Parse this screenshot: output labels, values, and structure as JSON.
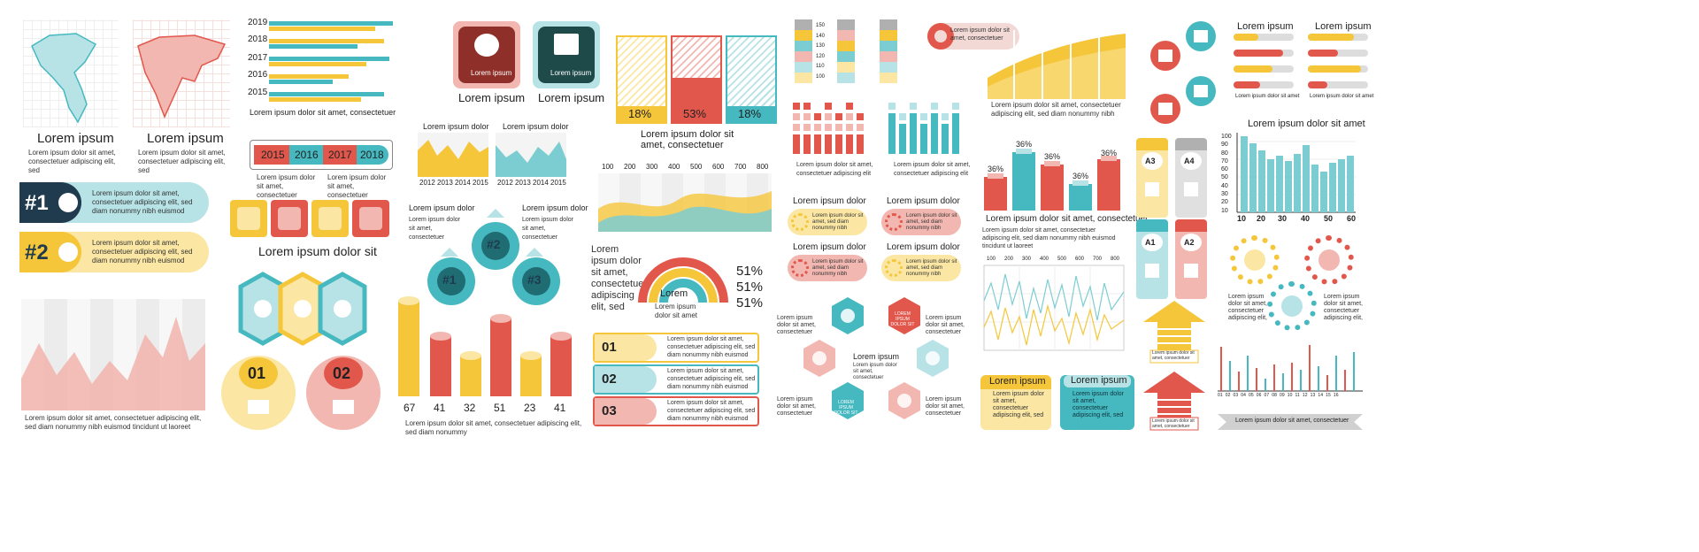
{
  "colors": {
    "teal": "#45b8c0",
    "red": "#e2574c",
    "yellow": "#f5c63a",
    "pink": "#f2b7b0",
    "lightteal": "#b7e3e6",
    "lightyellow": "#fbe7a3",
    "dark": "#1f3b4d"
  },
  "maps": {
    "a_title": "Lorem ipsum",
    "b_title": "Lorem ipsum",
    "a_text": "Lorem ipsum dolor sit amet, consectetuer adipiscing elit, sed",
    "b_text": "Lorem ipsum dolor sit amet, consectetuer adipiscing elit, sed"
  },
  "hbar": {
    "years": [
      "2019",
      "2018",
      "2017",
      "2016",
      "2015"
    ],
    "caption": "Lorem ipsum dolor sit amet, consectetuer"
  },
  "timeline": {
    "years": [
      "2015",
      "2016",
      "2017",
      "2018"
    ],
    "text_a": "Lorem ipsum dolor sit amet, consectetuer",
    "text_b": "Lorem ipsum dolor sit amet, consectetuer"
  },
  "numbered_banners": [
    {
      "num": "#1",
      "text": "Lorem ipsum dolor sit amet, consectetuer adipiscing elit, sed diam nonummy nibh euismod"
    },
    {
      "num": "#2",
      "text": "Lorem ipsum dolor sit amet, consectetuer adipiscing elit, sed diam nonummy nibh euismod"
    }
  ],
  "area_chart": {
    "caption": "Lorem ipsum dolor sit amet, consectetuer adipiscing elit, sed diam nonummy nibh euismod tincidunt ut laoreet"
  },
  "icon_tiles": {
    "caption": "Lorem ipsum dolor sit"
  },
  "hex_group": {},
  "circle_numbers": [
    "01",
    "02"
  ],
  "money_tiles": {
    "a_label": "Lorem ipsum",
    "b_label": "Lorem ipsum",
    "a_inner": "Lorem ipsum",
    "b_inner": "Lorem ipsum"
  },
  "small_areas": {
    "a_title": "Lorem ipsum dolor",
    "b_title": "Lorem ipsum dolor",
    "a_years": [
      "2012",
      "2013",
      "2014",
      "2015"
    ],
    "b_years": [
      "2012",
      "2013",
      "2014",
      "2015"
    ]
  },
  "triad": {
    "left": "Lorem ipsum dolor",
    "right": "Lorem ipsum dolor",
    "left_text": "Lorem ipsum dolor sit amet, consectetuer",
    "right_text": "Lorem ipsum dolor sit amet, consectetuer",
    "nodes": [
      "#1",
      "#2",
      "#3"
    ]
  },
  "cylinders": {
    "values": [
      "67",
      "41",
      "32",
      "51",
      "23",
      "41"
    ],
    "caption": "Lorem ipsum dolor sit amet, consectetuer adipiscing elit, sed diam nonummy"
  },
  "percent_bars": {
    "values": [
      "18%",
      "53%",
      "18%"
    ],
    "caption": "Lorem ipsum dolor sit amet, consectetuer"
  },
  "wave": {
    "ticks": [
      "100",
      "200",
      "300",
      "400",
      "500",
      "600",
      "700",
      "800"
    ]
  },
  "rainbow": {
    "left_text": "Lorem ipsum dolor sit amet, consectetuer adipiscing elit, sed",
    "center": "Lorem",
    "center_text": "Lorem ipsum dolor sit amet",
    "pcts": [
      "51%",
      "51%",
      "51%"
    ]
  },
  "steps": [
    {
      "num": "01",
      "text": "Lorem ipsum dolor sit amet, consectetuer adipiscing elit, sed diam nonummy nibh euismod"
    },
    {
      "num": "02",
      "text": "Lorem ipsum dolor sit amet, consectetuer adipiscing elit, sed diam nonummy nibh euismod"
    },
    {
      "num": "03",
      "text": "Lorem ipsum dolor sit amet, consectetuer adipiscing elit, sed diam nonummy nibh euismod"
    }
  ],
  "level_bars": {
    "ticks": [
      "150",
      "140",
      "130",
      "120",
      "110",
      "100"
    ]
  },
  "bubble": {
    "text": "Lorem ipsum dolor sit amet, consectetuer"
  },
  "blocks": {
    "a_text": "Lorem ipsum dolor sit amet, consectetuer adipiscing elit",
    "b_text": "Lorem ipsum dolor sit amet, consectetuer adipiscing elit"
  },
  "gear_cards": {
    "titles": [
      "Lorem ipsum dolor",
      "Lorem ipsum dolor",
      "Lorem ipsum dolor",
      "Lorem ipsum dolor"
    ],
    "text": "Lorem ipsum dolor sit amet, sed diam nonummy nibh"
  },
  "hex_wheel": {
    "center": "Lorem ipsum",
    "inner": "LOREM IPSUM DOLOR SIT",
    "side_text": "Lorem ipsum dolor sit amet, consectetuer"
  },
  "yellow_area": {
    "caption": "Lorem ipsum dolor sit amet, consectetuer adipiscing elit, sed diam nonummy nibh"
  },
  "prisms": {
    "values": [
      "36%",
      "36%",
      "36%",
      "36%",
      "36%"
    ],
    "caption": "Lorem ipsum dolor sit amet, consectetuer",
    "text": "Lorem ipsum dolor sit amet, consectetuer adipiscing elit, sed diam nonummy nibh euismod tincidunt ut laoreet"
  },
  "line_chart": {
    "ticks": [
      "100",
      "200",
      "300",
      "400",
      "500",
      "600",
      "700",
      "800"
    ]
  },
  "callouts": {
    "a_title": "Lorem ipsum",
    "b_title": "Lorem ipsum",
    "text": "Lorem ipsum dolor sit amet, consectetuer adipiscing elit, sed"
  },
  "tags": [
    "A3",
    "A4",
    "A1",
    "A2"
  ],
  "progress": {
    "a_title": "Lorem ipsum",
    "b_title": "Lorem ipsum",
    "text": "Lorem ipsum dolor sit amet"
  },
  "vbar": {
    "title": "Lorem ipsum dolor sit amet",
    "yticks": [
      "100",
      "90",
      "80",
      "70",
      "60",
      "50",
      "40",
      "30",
      "20",
      "10"
    ],
    "xticks": [
      "10",
      "20",
      "30",
      "40",
      "50",
      "60"
    ]
  },
  "gears_right": {
    "text": "Lorem ipsum dolor sit amet, consectetuer adipiscing elit,"
  },
  "arrows": {
    "text": "Lorem ipsum dolor sit amet, consectetuer"
  },
  "mini_bars": {
    "ticks": [
      "01",
      "02",
      "03",
      "04",
      "05",
      "06",
      "07",
      "08",
      "09",
      "10",
      "11",
      "12",
      "13",
      "14",
      "15",
      "16"
    ],
    "caption": "Lorem ipsum dolor sit amet, consectetuer"
  }
}
